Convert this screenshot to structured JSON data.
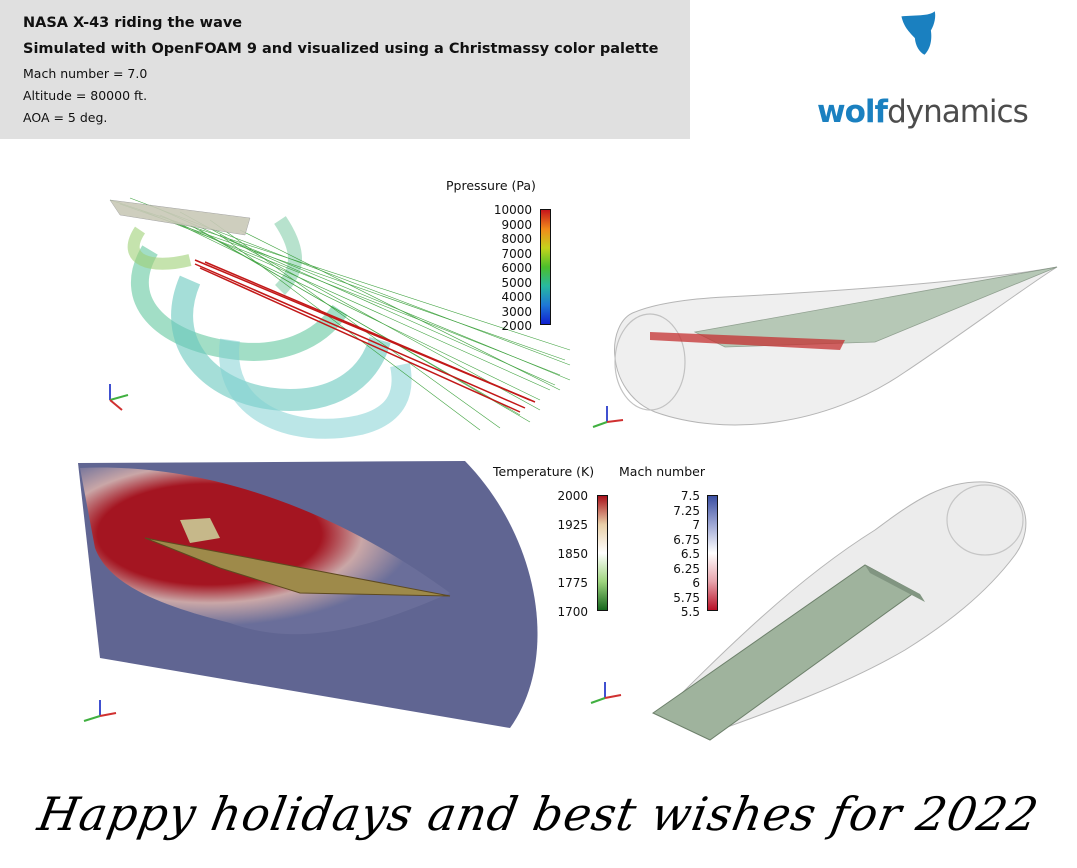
{
  "header": {
    "title": "NASA X-43 riding the wave",
    "subtitle": "Simulated with OpenFOAM 9 and visualized using a Christmassy color palette",
    "params": [
      "Mach number = 7.0",
      "Altitude = 80000 ft.",
      "AOA = 5 deg."
    ]
  },
  "logo": {
    "part1": "wolf",
    "part2": "dynamics",
    "icon": "wolf-head-icon",
    "color_primary": "#1a80c0",
    "color_text": "#4c4c4c"
  },
  "pressure_bar": {
    "title": "Ppressure (Pa)",
    "ticks": [
      "10000",
      "9000",
      "8000",
      "7000",
      "6000",
      "5000",
      "4000",
      "3000",
      "2000"
    ],
    "colors": [
      "#c6151b",
      "#f08a1b",
      "#c4d31c",
      "#4cbf2b",
      "#27b9a0",
      "#1e78d6",
      "#1020d0"
    ]
  },
  "temperature_bar": {
    "title": "Temperature (K)",
    "ticks": [
      "2000",
      "1925",
      "1850",
      "1775",
      "1700"
    ],
    "colors": [
      "#a8111b",
      "#e9cfa8",
      "#ffffff",
      "#9fd57f",
      "#16661c"
    ]
  },
  "mach_bar": {
    "title": "Mach number",
    "ticks": [
      "7.5",
      "7.25",
      "7",
      "6.75",
      "6.5",
      "6.25",
      "6",
      "5.75",
      "5.5"
    ],
    "colors": [
      "#3b4fa2",
      "#9ea7d4",
      "#ffffff",
      "#e7a4ac",
      "#b81026"
    ]
  },
  "greeting": "Happy holidays and best wishes for 2022"
}
